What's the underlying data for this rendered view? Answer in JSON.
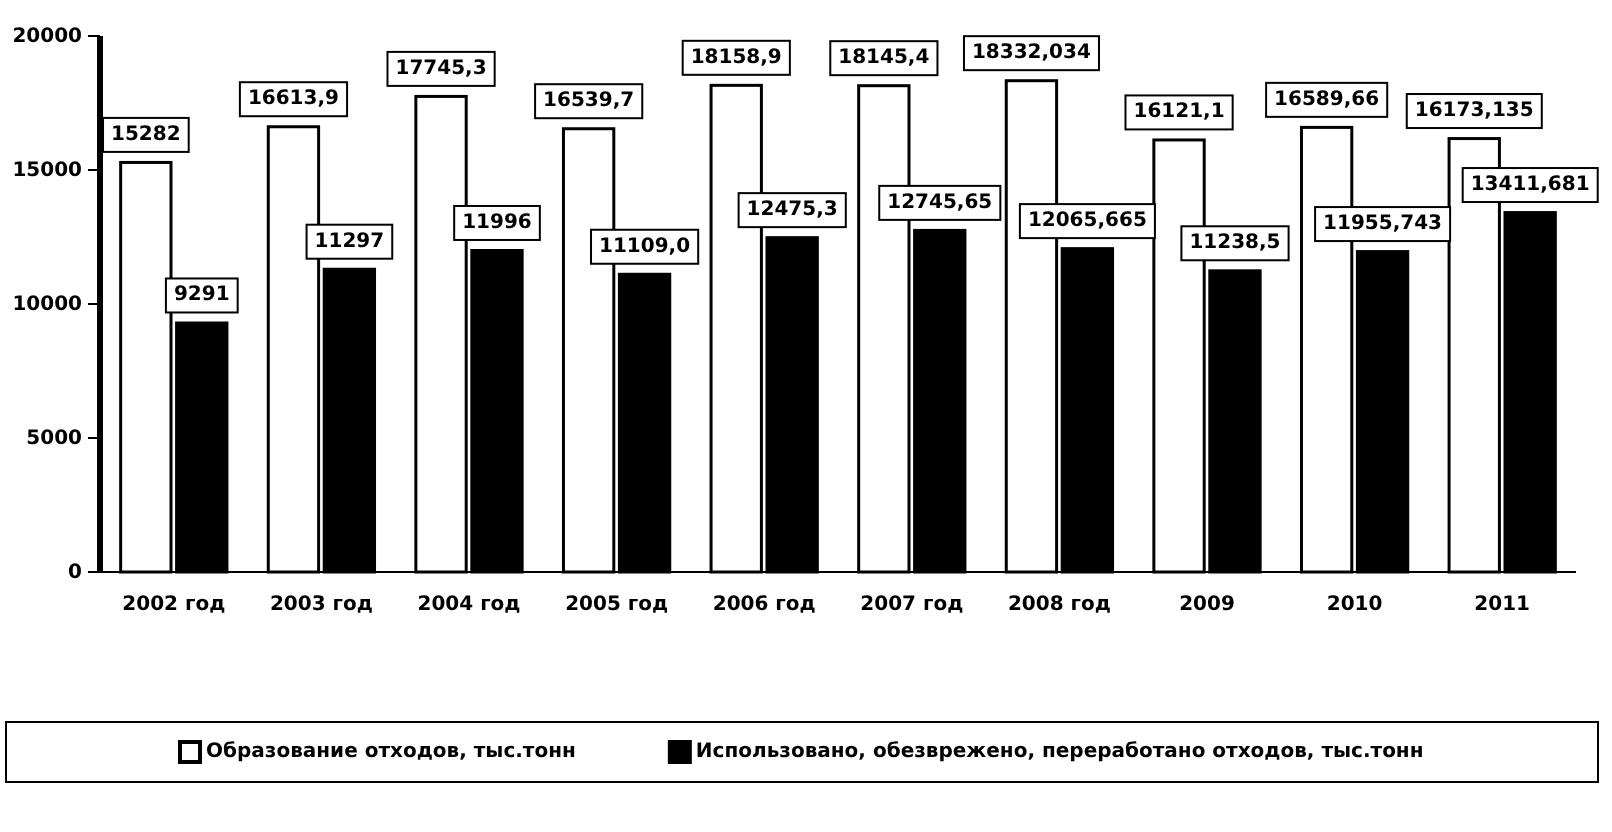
{
  "chart_data": {
    "type": "bar",
    "categories": [
      "2002 год",
      "2003 год",
      "2004 год",
      "2005 год",
      "2006 год",
      "2007 год",
      "2008 год",
      "2009",
      "2010",
      "2011"
    ],
    "series": [
      {
        "name": "Образование  отходов, тыс.тонн",
        "color": "#ffffff",
        "values": [
          15282,
          16613.9,
          17745.3,
          16539.7,
          18158.9,
          18145.4,
          18332.034,
          16121.1,
          16589.66,
          16173.135
        ],
        "value_labels": [
          "15282",
          "16613,9",
          "17745,3",
          "16539,7",
          "18158,9",
          "18145,4",
          "18332,034",
          "16121,1",
          "16589,66",
          "16173,135"
        ]
      },
      {
        "name": "Использовано, обезврежено, переработано отходов, тыс.тонн",
        "color": "#000000",
        "values": [
          9291,
          11297,
          11996,
          11109.0,
          12475.3,
          12745.65,
          12065.665,
          11238.5,
          11955.743,
          13411.681
        ],
        "value_labels": [
          "9291",
          "11297",
          "11996",
          "11109,0",
          "12475,3",
          "12745,65",
          "12065,665",
          "11238,5",
          "11955,743",
          "13411,681"
        ]
      }
    ],
    "ylim": [
      0,
      20000
    ],
    "yticks": [
      0,
      5000,
      10000,
      15000,
      20000
    ],
    "legend": "bottom"
  }
}
